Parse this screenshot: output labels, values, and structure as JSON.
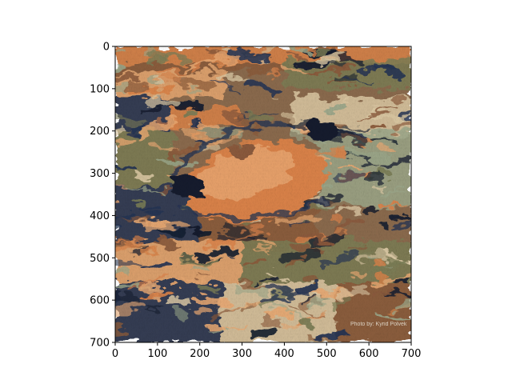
{
  "chart_data": {
    "type": "image",
    "title": "",
    "xlabel": "",
    "ylabel": "",
    "xlim": [
      0,
      700
    ],
    "ylim": [
      700,
      0
    ],
    "x_ticks": [
      "0",
      "100",
      "200",
      "300",
      "400",
      "500",
      "600",
      "700"
    ],
    "y_ticks": [
      "0",
      "100",
      "200",
      "300",
      "400",
      "500",
      "600",
      "700"
    ],
    "grid": false,
    "image_description": "stylized painted image, swirling strokes in orange, navy blue, olive green and cream tones",
    "watermark_text": "Photo by: Kyrid Polvek"
  },
  "palette": {
    "orange": "#d9824a",
    "light_orange": "#e8a872",
    "navy": "#253453",
    "dark_navy": "#141d2e",
    "olive": "#7a7c55",
    "sage": "#9ba78a",
    "cream": "#dcc9a5",
    "brown": "#8a5a3c",
    "axis": "#000000"
  }
}
